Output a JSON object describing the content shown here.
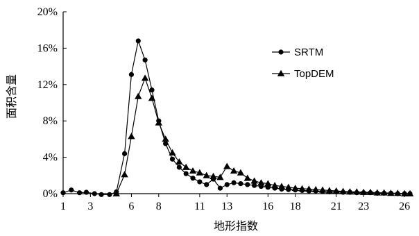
{
  "chart_data": {
    "type": "line",
    "xlabel": "地形指数",
    "ylabel": "面积含量",
    "xlim": [
      1,
      26.5
    ],
    "ylim": [
      0,
      20
    ],
    "x_ticks": [
      1,
      3,
      6,
      8,
      11,
      13,
      16,
      18,
      21,
      23,
      26
    ],
    "x_tick_labels": [
      "1",
      "3",
      "6",
      "8",
      "11",
      "13",
      "16",
      "18",
      "21",
      "23",
      "26"
    ],
    "y_ticks": [
      0,
      4,
      8,
      12,
      16,
      20
    ],
    "y_tick_labels": [
      "0%",
      "4%",
      "8%",
      "12%",
      "16%",
      "20%"
    ],
    "legend": "right",
    "series": [
      {
        "name": "SRTM",
        "marker": "circle",
        "color": "#000000",
        "points": [
          [
            1.0,
            0.1
          ],
          [
            1.6,
            0.4
          ],
          [
            2.2,
            0.1
          ],
          [
            2.7,
            0.15
          ],
          [
            3.3,
            0.0
          ],
          [
            3.8,
            -0.1
          ],
          [
            4.4,
            -0.1
          ],
          [
            4.9,
            0.2
          ],
          [
            5.5,
            4.4
          ],
          [
            6.0,
            13.1
          ],
          [
            6.5,
            16.8
          ],
          [
            7.0,
            14.7
          ],
          [
            7.5,
            11.4
          ],
          [
            8.0,
            8.0
          ],
          [
            8.5,
            5.5
          ],
          [
            9.0,
            3.8
          ],
          [
            9.5,
            2.9
          ],
          [
            10.0,
            2.2
          ],
          [
            10.5,
            1.7
          ],
          [
            11.0,
            1.3
          ],
          [
            11.5,
            1.0
          ],
          [
            12.0,
            1.6
          ],
          [
            12.5,
            0.6
          ],
          [
            13.0,
            1.0
          ],
          [
            13.5,
            1.2
          ],
          [
            14.0,
            1.1
          ],
          [
            14.5,
            1.0
          ],
          [
            15.0,
            0.9
          ],
          [
            15.5,
            0.8
          ],
          [
            16.0,
            0.7
          ],
          [
            16.5,
            0.6
          ],
          [
            17.0,
            0.5
          ],
          [
            17.5,
            0.45
          ],
          [
            18.0,
            0.4
          ],
          [
            18.5,
            0.35
          ],
          [
            19.0,
            0.3
          ],
          [
            19.5,
            0.3
          ],
          [
            20.0,
            0.25
          ],
          [
            20.5,
            0.2
          ],
          [
            21.0,
            0.2
          ],
          [
            21.5,
            0.15
          ],
          [
            22.0,
            0.15
          ],
          [
            22.5,
            0.1
          ],
          [
            23.0,
            0.1
          ],
          [
            23.5,
            0.1
          ],
          [
            24.0,
            0.05
          ],
          [
            24.5,
            0.05
          ],
          [
            25.0,
            0.05
          ],
          [
            25.5,
            0.0
          ],
          [
            26.0,
            0.0
          ],
          [
            26.4,
            0.0
          ]
        ]
      },
      {
        "name": "TopDEM",
        "marker": "triangle",
        "color": "#000000",
        "points": [
          [
            4.9,
            0.0
          ],
          [
            5.5,
            2.1
          ],
          [
            6.0,
            6.3
          ],
          [
            6.5,
            10.7
          ],
          [
            7.0,
            12.7
          ],
          [
            7.5,
            10.5
          ],
          [
            8.0,
            7.8
          ],
          [
            8.5,
            6.0
          ],
          [
            9.0,
            4.5
          ],
          [
            9.5,
            3.5
          ],
          [
            10.0,
            2.9
          ],
          [
            10.5,
            2.5
          ],
          [
            11.0,
            2.3
          ],
          [
            11.5,
            2.0
          ],
          [
            12.0,
            1.9
          ],
          [
            12.5,
            1.8
          ],
          [
            13.0,
            3.0
          ],
          [
            13.5,
            2.5
          ],
          [
            14.0,
            2.3
          ],
          [
            14.5,
            1.7
          ],
          [
            15.0,
            1.4
          ],
          [
            15.5,
            1.2
          ],
          [
            16.0,
            1.1
          ],
          [
            16.5,
            0.9
          ],
          [
            17.0,
            0.8
          ],
          [
            17.5,
            0.7
          ],
          [
            18.0,
            0.6
          ],
          [
            18.5,
            0.55
          ],
          [
            19.0,
            0.5
          ],
          [
            19.5,
            0.45
          ],
          [
            20.0,
            0.4
          ],
          [
            20.5,
            0.35
          ],
          [
            21.0,
            0.3
          ],
          [
            21.5,
            0.25
          ],
          [
            22.0,
            0.2
          ],
          [
            22.5,
            0.2
          ],
          [
            23.0,
            0.15
          ],
          [
            23.5,
            0.15
          ],
          [
            24.0,
            0.1
          ],
          [
            24.5,
            0.1
          ],
          [
            25.0,
            0.05
          ],
          [
            25.5,
            0.05
          ],
          [
            26.0,
            0.0
          ],
          [
            26.4,
            0.0
          ]
        ]
      }
    ]
  }
}
